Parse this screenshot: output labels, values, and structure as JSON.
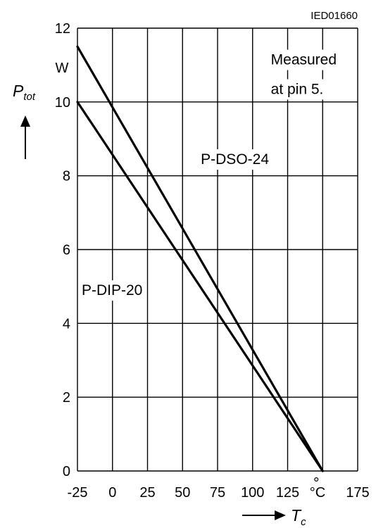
{
  "chart_data": {
    "type": "line",
    "code": "IED01660",
    "xlabel": {
      "symbol": "T",
      "subscript": "c"
    },
    "ylabel": {
      "symbol": "P",
      "subscript": "tot"
    },
    "x_unit": "°C",
    "y_unit": "W",
    "xlim": [
      -25,
      175
    ],
    "ylim": [
      0,
      12
    ],
    "grid": true,
    "x_ticks": [
      {
        "value": -25,
        "label": "-25"
      },
      {
        "value": 0,
        "label": "0"
      },
      {
        "value": 25,
        "label": "25"
      },
      {
        "value": 50,
        "label": "50"
      },
      {
        "value": 75,
        "label": "75"
      },
      {
        "value": 100,
        "label": "100"
      },
      {
        "value": 125,
        "label": "125"
      },
      {
        "value": 175,
        "label": "175"
      }
    ],
    "y_ticks": [
      {
        "value": 0,
        "label": "0"
      },
      {
        "value": 2,
        "label": "2"
      },
      {
        "value": 4,
        "label": "4"
      },
      {
        "value": 6,
        "label": "6"
      },
      {
        "value": 8,
        "label": "8"
      },
      {
        "value": 10,
        "label": "10"
      },
      {
        "value": 12,
        "label": "12"
      }
    ],
    "series": [
      {
        "name": "P-DSO-24",
        "x": [
          -25,
          150
        ],
        "y": [
          11.5,
          0
        ]
      },
      {
        "name": "P-DIP-20",
        "x": [
          -25,
          150
        ],
        "y": [
          10,
          0
        ]
      }
    ],
    "annotations": [
      {
        "text": "Measured",
        "x": 110,
        "y": 11.15
      },
      {
        "text": "at pin 5.",
        "x": 110,
        "y": 10.35
      },
      {
        "text": "P-DSO-24",
        "x": 60,
        "y": 8.45
      },
      {
        "text": "P-DIP-20",
        "x": -25,
        "y": 4.9
      }
    ]
  }
}
